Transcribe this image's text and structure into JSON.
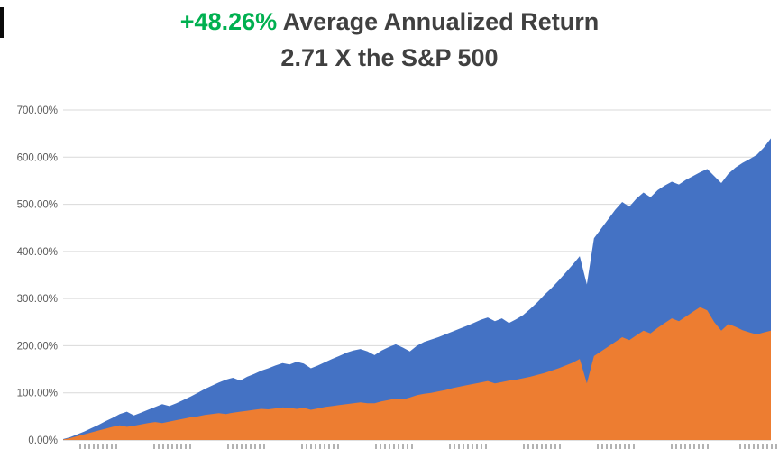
{
  "title": {
    "highlight": "+48.26%",
    "line1_rest": " Average Annualized Return",
    "line2": "2.71 X the S&P 500",
    "highlight_color": "#00B050",
    "text_color": "#404040"
  },
  "colors": {
    "background": "#ffffff",
    "gridline": "#d9d9d9",
    "axis_line": "#bfbfbf",
    "tick_text": "#595959",
    "series_blue": "#4472C4",
    "series_orange": "#ED7D31"
  },
  "chart_data": {
    "type": "area",
    "title": "+48.26% Average Annualized Return",
    "subtitle": "2.71 X the S&P 500",
    "xlabel": "",
    "ylabel": "",
    "ylim": [
      0,
      700
    ],
    "grid": true,
    "legend_position": "none",
    "x_tick_labels_visible": false,
    "y_ticks": [
      "0.00%",
      "100.00%",
      "200.00%",
      "300.00%",
      "400.00%",
      "500.00%",
      "600.00%",
      "700.00%"
    ],
    "y_tick_values": [
      0,
      100,
      200,
      300,
      400,
      500,
      600,
      700
    ],
    "series": [
      {
        "name": "blue-area-cumulative-return",
        "color": "#4472C4",
        "values": [
          2,
          6,
          12,
          18,
          25,
          32,
          40,
          47,
          55,
          60,
          52,
          58,
          64,
          70,
          76,
          72,
          78,
          85,
          92,
          100,
          108,
          115,
          122,
          128,
          132,
          126,
          134,
          140,
          147,
          152,
          158,
          163,
          160,
          166,
          162,
          152,
          158,
          165,
          172,
          178,
          185,
          190,
          193,
          188,
          180,
          190,
          197,
          203,
          196,
          188,
          200,
          208,
          213,
          218,
          224,
          230,
          236,
          242,
          248,
          255,
          260,
          252,
          258,
          248,
          256,
          265,
          278,
          292,
          308,
          322,
          338,
          355,
          372,
          390,
          330,
          428,
          448,
          468,
          488,
          505,
          495,
          512,
          525,
          515,
          530,
          540,
          548,
          542,
          552,
          560,
          568,
          575,
          560,
          545,
          565,
          578,
          588,
          596,
          605,
          620,
          640
        ]
      },
      {
        "name": "orange-area-sp500-cumulative-return",
        "color": "#ED7D31",
        "values": [
          1,
          4,
          8,
          12,
          16,
          20,
          24,
          28,
          31,
          28,
          30,
          33,
          36,
          38,
          36,
          39,
          42,
          45,
          48,
          50,
          53,
          55,
          57,
          55,
          58,
          60,
          62,
          64,
          66,
          65,
          67,
          69,
          68,
          66,
          68,
          64,
          67,
          70,
          72,
          74,
          76,
          78,
          80,
          78,
          78,
          82,
          85,
          88,
          86,
          90,
          95,
          98,
          100,
          103,
          106,
          110,
          113,
          116,
          119,
          122,
          125,
          120,
          123,
          126,
          128,
          131,
          134,
          138,
          142,
          147,
          152,
          158,
          164,
          172,
          120,
          178,
          188,
          198,
          208,
          218,
          212,
          222,
          232,
          226,
          238,
          248,
          258,
          252,
          262,
          272,
          282,
          275,
          250,
          232,
          246,
          240,
          233,
          228,
          224,
          228,
          232
        ]
      }
    ]
  }
}
